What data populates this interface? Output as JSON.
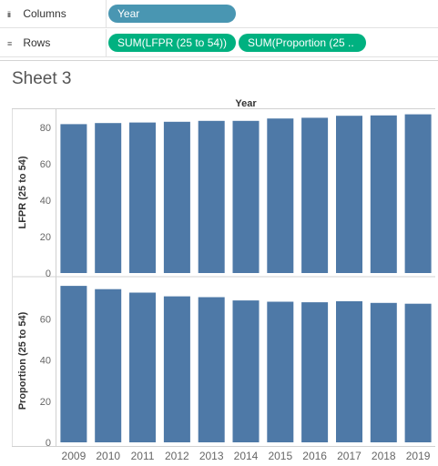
{
  "shelves": {
    "columns": {
      "label": "Columns",
      "icon": "iii",
      "pills": [
        "Year"
      ]
    },
    "rows": {
      "label": "Rows",
      "icon": "≡",
      "pills": [
        "SUM(LFPR (25 to 54))",
        "SUM(Proportion (25 .."
      ]
    }
  },
  "sheet": {
    "title": "Sheet 3"
  },
  "colors": {
    "bar": "#4e79a7",
    "dimension_pill": "#4996b2",
    "measure_pill": "#00b180"
  },
  "chart_data": {
    "type": "bar",
    "title": "Year",
    "categories": [
      "2009",
      "2010",
      "2011",
      "2012",
      "2013",
      "2014",
      "2015",
      "2016",
      "2017",
      "2018",
      "2019"
    ],
    "panes": [
      {
        "ylabel": "LFPR (25 to 54)",
        "ylim": [
          0,
          90
        ],
        "yticks": [
          "0",
          "20",
          "40",
          "60",
          "80"
        ],
        "values": [
          81.8,
          82.4,
          82.7,
          83.1,
          83.6,
          83.6,
          84.9,
          85.3,
          86.4,
          86.6,
          87.2
        ]
      },
      {
        "ylabel": "Proportion (25 to 54)",
        "ylim": [
          0,
          80
        ],
        "yticks": [
          "0",
          "20",
          "40",
          "60"
        ],
        "values": [
          76.0,
          74.4,
          72.7,
          70.9,
          70.5,
          68.9,
          68.3,
          68.0,
          68.5,
          67.7,
          67.3
        ]
      }
    ]
  }
}
